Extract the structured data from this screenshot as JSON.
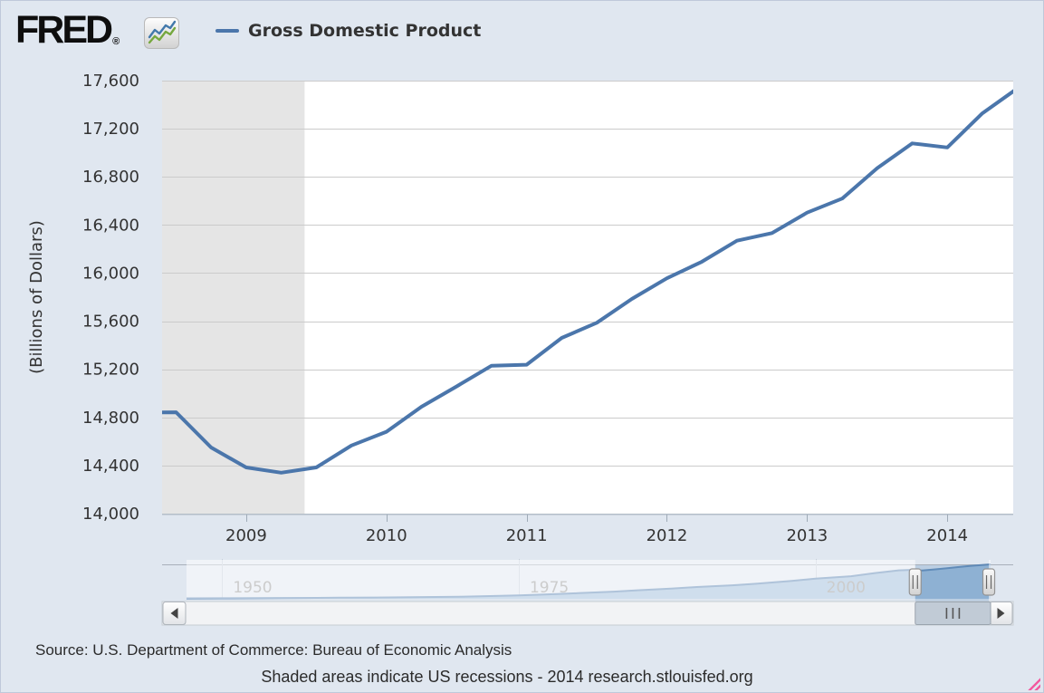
{
  "header": {
    "logo_text": "FRED",
    "logo_reg": "®",
    "logo_icon": "sparkline-chart-icon"
  },
  "legend": {
    "series_label": "Gross Domestic Product",
    "series_color": "#4b76ab"
  },
  "footer": {
    "source": "Source: U.S. Department of Commerce: Bureau of Economic Analysis",
    "note": "Shaded areas indicate US recessions - 2014 research.stlouisfed.org"
  },
  "icons": {
    "scrollbar_left": "left-arrow-icon",
    "scrollbar_right": "right-arrow-icon",
    "scrollbar_thumb": "grip-lines-icon",
    "navigator_handles": "grip-handle-icon",
    "resize_corner": "resize-handle-icon"
  },
  "chart_data": {
    "type": "line",
    "title": "Gross Domestic Product",
    "ylabel": "(Billions of Dollars)",
    "ylim": [
      14000,
      17600
    ],
    "ytick_step": 400,
    "y_ticks": [
      14000,
      14400,
      14800,
      15200,
      15600,
      16000,
      16400,
      16800,
      17200,
      17600
    ],
    "x_ticks": [
      2009,
      2010,
      2011,
      2012,
      2013,
      2014
    ],
    "x_domain_years": [
      2008.4,
      2014.47
    ],
    "grid": "horizontal",
    "legend_position": "top",
    "line_width": 4,
    "recession_color": "#e5e5e5",
    "recessions": [
      {
        "start": "2007-12-01",
        "end": "2009-06-01"
      }
    ],
    "series": [
      {
        "name": "Gross Domestic Product",
        "color": "#4b76ab",
        "points": [
          [
            "2008-04-01",
            14840.8
          ],
          [
            "2008-07-01",
            14842.6
          ],
          [
            "2008-10-01",
            14549.9
          ],
          [
            "2009-01-01",
            14383.9
          ],
          [
            "2009-04-01",
            14340.4
          ],
          [
            "2009-07-01",
            14384.1
          ],
          [
            "2009-10-01",
            14566.5
          ],
          [
            "2010-01-01",
            14681.1
          ],
          [
            "2010-04-01",
            14888.6
          ],
          [
            "2010-07-01",
            15057.7
          ],
          [
            "2010-10-01",
            15230.2
          ],
          [
            "2011-01-01",
            15238.4
          ],
          [
            "2011-04-01",
            15460.9
          ],
          [
            "2011-07-01",
            15587.1
          ],
          [
            "2011-10-01",
            15785.3
          ],
          [
            "2012-01-01",
            15956.5
          ],
          [
            "2012-04-01",
            16094.7
          ],
          [
            "2012-07-01",
            16268.9
          ],
          [
            "2012-10-01",
            16332.5
          ],
          [
            "2013-01-01",
            16502.4
          ],
          [
            "2013-04-01",
            16619.2
          ],
          [
            "2013-07-01",
            16872.3
          ],
          [
            "2013-10-01",
            17078.3
          ],
          [
            "2014-01-01",
            17044.0
          ],
          [
            "2014-04-01",
            17328.2
          ],
          [
            "2014-07-01",
            17535.4
          ]
        ]
      }
    ],
    "navigator": {
      "x_domain_years": [
        1947,
        2014.75
      ],
      "x_ticks": [
        1950,
        1975,
        2000
      ],
      "selection_years": [
        2008.4,
        2014.6
      ],
      "value_max": 17535.4,
      "series_points": [
        [
          1947,
          243.2
        ],
        [
          1950,
          299.8
        ],
        [
          1953,
          389.2
        ],
        [
          1955,
          425.5
        ],
        [
          1958,
          482.0
        ],
        [
          1960,
          542.4
        ],
        [
          1963,
          637.5
        ],
        [
          1965,
          743.7
        ],
        [
          1968,
          941.4
        ],
        [
          1970,
          1075.9
        ],
        [
          1973,
          1425.4
        ],
        [
          1975,
          1688.9
        ],
        [
          1978,
          2356.6
        ],
        [
          1980,
          2862.5
        ],
        [
          1983,
          3638.1
        ],
        [
          1985,
          4346.7
        ],
        [
          1988,
          5252.6
        ],
        [
          1990,
          5979.6
        ],
        [
          1993,
          6858.6
        ],
        [
          1995,
          7664.0
        ],
        [
          1998,
          9089.2
        ],
        [
          2000,
          10284.8
        ],
        [
          2003,
          11510.7
        ],
        [
          2005,
          13093.7
        ],
        [
          2007,
          14477.6
        ],
        [
          2008,
          14718.6
        ],
        [
          2009,
          14418.7
        ],
        [
          2010,
          14964.4
        ],
        [
          2011,
          15517.9
        ],
        [
          2012,
          16163.2
        ],
        [
          2013,
          16768.1
        ],
        [
          2014.75,
          17535.4
        ]
      ]
    }
  }
}
